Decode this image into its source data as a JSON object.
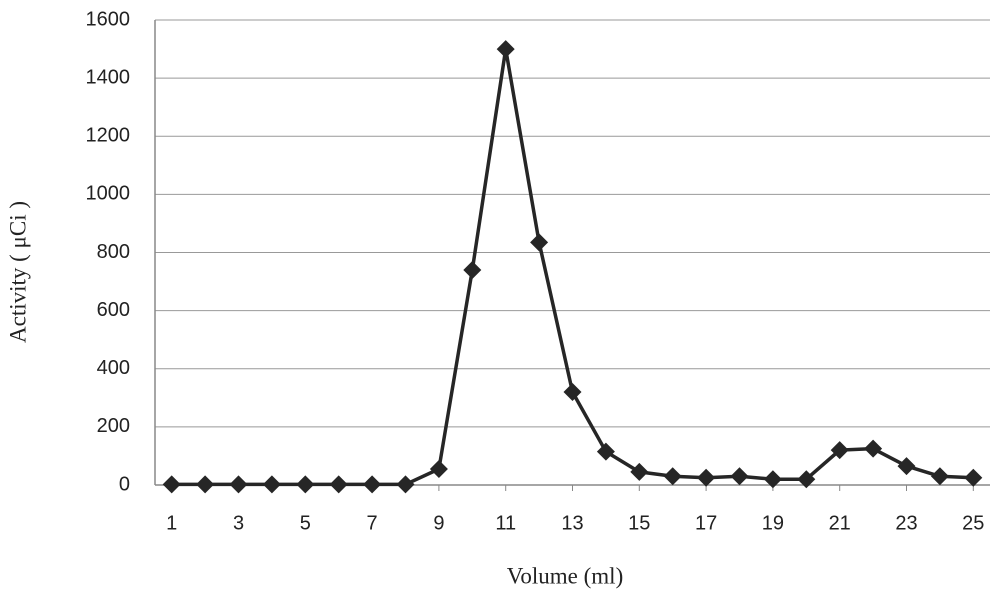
{
  "chart_data": {
    "type": "line",
    "x_label": "Volume (ml)",
    "y_label": "Activity ( μCi )",
    "x": [
      1,
      2,
      3,
      4,
      5,
      6,
      7,
      8,
      9,
      10,
      11,
      12,
      13,
      14,
      15,
      16,
      17,
      18,
      19,
      20,
      21,
      22,
      23,
      24,
      25
    ],
    "series": [
      {
        "color": "#262626",
        "values": [
          2,
          2,
          2,
          2,
          2,
          2,
          2,
          2,
          55,
          740,
          1500,
          835,
          320,
          115,
          45,
          30,
          25,
          30,
          20,
          20,
          120,
          125,
          65,
          30,
          25
        ]
      }
    ],
    "xlim": [
      0.5,
      25.5
    ],
    "xticks": [
      1,
      3,
      5,
      7,
      9,
      11,
      13,
      15,
      17,
      19,
      21,
      23,
      25
    ],
    "ylim": [
      0,
      1600
    ],
    "yticks": [
      0,
      200,
      400,
      600,
      800,
      1000,
      1200,
      1400,
      1600
    ],
    "grid": true,
    "marker": "diamond"
  }
}
